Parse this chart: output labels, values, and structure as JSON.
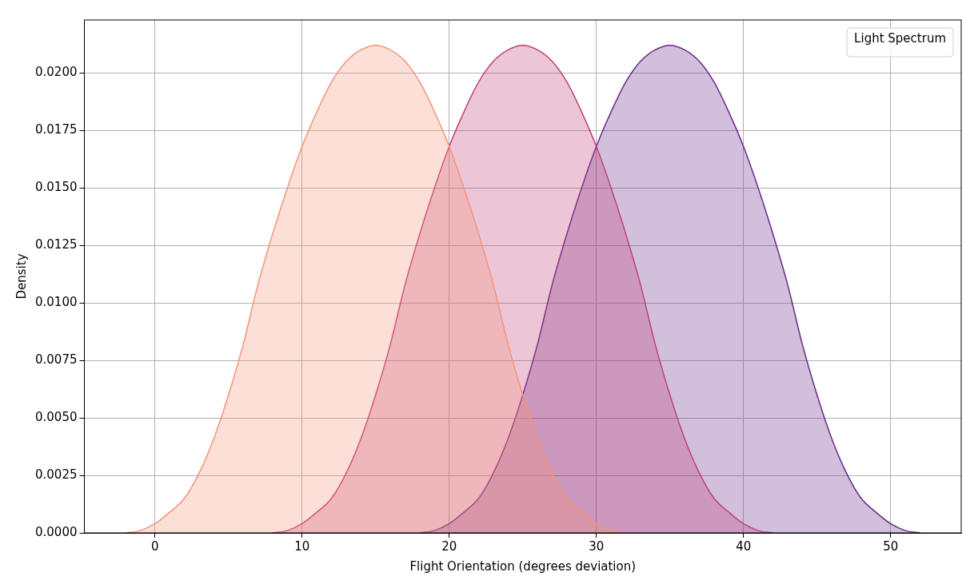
{
  "chart_data": {
    "type": "area",
    "xlabel": "Flight Orientation (degrees deviation)",
    "ylabel": "Density",
    "legend_title": "Light Spectrum",
    "grid": true,
    "xlim": [
      -4.8,
      54.8
    ],
    "xticks": [
      0,
      10,
      20,
      30,
      40,
      50
    ],
    "ylim": [
      0,
      0.0223
    ],
    "yticks": [
      {
        "value": 0,
        "label": "0.0000"
      },
      0.0025,
      {
        "value": 0.005,
        "label": "0.0050"
      },
      0.0075,
      {
        "value": 0.01,
        "label": "0.0100"
      },
      0.0125,
      {
        "value": 0.015,
        "label": "0.0150"
      },
      0.0175,
      {
        "value": 0.02,
        "label": "0.0200"
      }
    ],
    "series": [
      {
        "color": "#f4957a",
        "x": [
          -2,
          -1,
          0,
          1,
          2,
          3,
          4,
          5,
          6,
          7,
          8,
          9,
          10,
          11,
          12,
          13,
          14,
          15,
          16,
          17,
          18,
          19,
          20,
          21,
          22,
          23,
          24,
          25,
          26,
          27,
          28,
          29,
          30,
          31,
          32
        ],
        "values": [
          0,
          0.0001,
          0.0004,
          0.0009,
          0.0015,
          0.0026,
          0.0041,
          0.006,
          0.0082,
          0.0108,
          0.013,
          0.015,
          0.0168,
          0.0183,
          0.0196,
          0.0205,
          0.021,
          0.0212,
          0.021,
          0.0205,
          0.0196,
          0.0183,
          0.0168,
          0.015,
          0.013,
          0.0108,
          0.0082,
          0.006,
          0.0041,
          0.0026,
          0.0015,
          0.0009,
          0.0004,
          0.0001,
          0
        ]
      },
      {
        "color": "#c0407a",
        "x": [
          8,
          9,
          10,
          11,
          12,
          13,
          14,
          15,
          16,
          17,
          18,
          19,
          20,
          21,
          22,
          23,
          24,
          25,
          26,
          27,
          28,
          29,
          30,
          31,
          32,
          33,
          34,
          35,
          36,
          37,
          38,
          39,
          40,
          41,
          42
        ],
        "values": [
          0,
          0.0001,
          0.0004,
          0.0009,
          0.0015,
          0.0026,
          0.0041,
          0.006,
          0.0082,
          0.0108,
          0.013,
          0.015,
          0.0168,
          0.0183,
          0.0196,
          0.0205,
          0.021,
          0.0212,
          0.021,
          0.0205,
          0.0196,
          0.0183,
          0.0168,
          0.015,
          0.013,
          0.0108,
          0.0082,
          0.006,
          0.0041,
          0.0026,
          0.0015,
          0.0009,
          0.0004,
          0.0001,
          0
        ]
      },
      {
        "color": "#6a2a8a",
        "x": [
          18,
          19,
          20,
          21,
          22,
          23,
          24,
          25,
          26,
          27,
          28,
          29,
          30,
          31,
          32,
          33,
          34,
          35,
          36,
          37,
          38,
          39,
          40,
          41,
          42,
          43,
          44,
          45,
          46,
          47,
          48,
          49,
          50,
          51,
          52
        ],
        "values": [
          0,
          0.0001,
          0.0004,
          0.0009,
          0.0015,
          0.0026,
          0.0041,
          0.006,
          0.0082,
          0.0108,
          0.013,
          0.015,
          0.0168,
          0.0183,
          0.0196,
          0.0205,
          0.021,
          0.0212,
          0.021,
          0.0205,
          0.0196,
          0.0183,
          0.0168,
          0.015,
          0.013,
          0.0108,
          0.0082,
          0.006,
          0.0041,
          0.0026,
          0.0015,
          0.0009,
          0.0004,
          0.0001,
          0
        ]
      }
    ]
  }
}
